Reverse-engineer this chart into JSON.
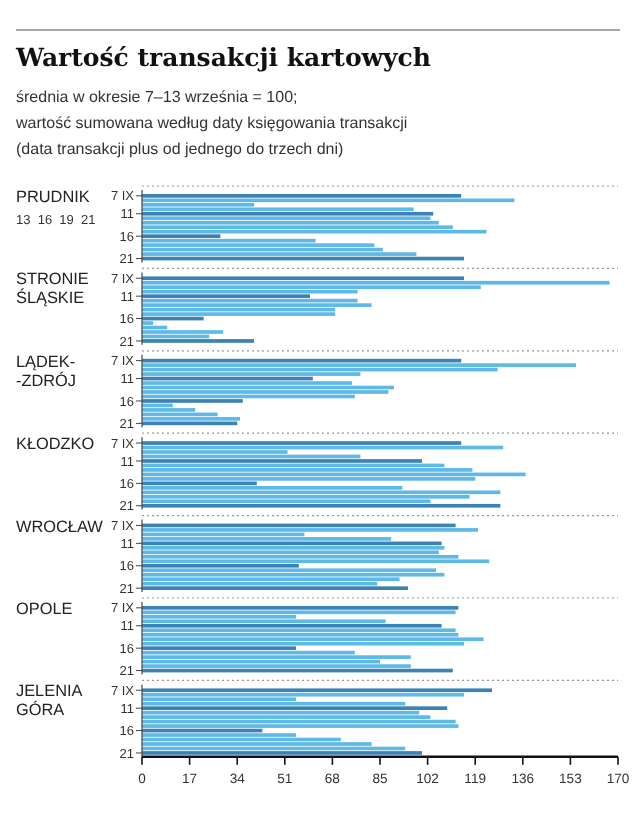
{
  "chart_data": [
    {
      "type": "bar",
      "orientation": "horizontal",
      "title": "Wartość transakcji kartowych",
      "subtitle": "średnia w okresie 7–13 września = 100;\nwartość sumowana według daty księgowania transakcji\n(data transakcji plus od jednego do trzech dni)",
      "ylabel": "PRUDNIK",
      "annotations": [
        "13  16  19  21"
      ],
      "categories": [
        "7 IX",
        null,
        null,
        null,
        "11",
        null,
        null,
        null,
        null,
        "16",
        null,
        null,
        null,
        null,
        "21"
      ],
      "values": [
        114,
        133,
        40,
        97,
        104,
        103,
        106,
        111,
        123,
        28,
        62,
        83,
        86,
        98,
        115
      ],
      "colors": [
        "#3d82b5",
        "#5fb9e6",
        "#5fb9e6",
        "#5fb9e6",
        "#3d82b5",
        "#5fb9e6",
        "#5fb9e6",
        "#5fb9e6",
        "#5fb9e6",
        "#3d82b5",
        "#5fb9e6",
        "#5fb9e6",
        "#5fb9e6",
        "#5fb9e6",
        "#3d82b5"
      ],
      "xlim": [
        0,
        170
      ],
      "tick_labels": "y"
    },
    {
      "type": "bar",
      "orientation": "horizontal",
      "ylabel": "STRONIE\nŚLĄSKIE",
      "categories": [
        "7 IX",
        null,
        null,
        null,
        "11",
        null,
        null,
        null,
        null,
        "16",
        null,
        null,
        null,
        null,
        "21"
      ],
      "values": [
        115,
        167,
        121,
        77,
        60,
        77,
        82,
        69,
        69,
        22,
        4,
        9,
        29,
        24,
        40
      ],
      "colors": [
        "#3d82b5",
        "#5fb9e6",
        "#5fb9e6",
        "#5fb9e6",
        "#3d82b5",
        "#5fb9e6",
        "#5fb9e6",
        "#5fb9e6",
        "#5fb9e6",
        "#3d82b5",
        "#5fb9e6",
        "#5fb9e6",
        "#5fb9e6",
        "#5fb9e6",
        "#3d82b5"
      ],
      "xlim": [
        0,
        170
      ],
      "tick_labels": "y"
    },
    {
      "type": "bar",
      "orientation": "horizontal",
      "ylabel": "LĄDEK-\n-ZDRÓJ",
      "categories": [
        "7 IX",
        null,
        null,
        null,
        "11",
        null,
        null,
        null,
        null,
        "16",
        null,
        null,
        null,
        null,
        "21"
      ],
      "values": [
        114,
        155,
        127,
        78,
        61,
        75,
        90,
        88,
        76,
        36,
        11,
        19,
        27,
        35,
        34
      ],
      "colors": [
        "#3d82b5",
        "#5fb9e6",
        "#5fb9e6",
        "#5fb9e6",
        "#3d82b5",
        "#5fb9e6",
        "#5fb9e6",
        "#5fb9e6",
        "#5fb9e6",
        "#3d82b5",
        "#5fb9e6",
        "#5fb9e6",
        "#5fb9e6",
        "#5fb9e6",
        "#3d82b5"
      ],
      "xlim": [
        0,
        170
      ],
      "tick_labels": "y"
    },
    {
      "type": "bar",
      "orientation": "horizontal",
      "ylabel": "KŁODZKO",
      "categories": [
        "7 IX",
        null,
        null,
        null,
        "11",
        null,
        null,
        null,
        null,
        "16",
        null,
        null,
        null,
        null,
        "21"
      ],
      "values": [
        114,
        129,
        52,
        78,
        100,
        108,
        118,
        137,
        119,
        41,
        93,
        128,
        117,
        103,
        128
      ],
      "colors": [
        "#3d82b5",
        "#5fb9e6",
        "#5fb9e6",
        "#5fb9e6",
        "#3d82b5",
        "#5fb9e6",
        "#5fb9e6",
        "#5fb9e6",
        "#5fb9e6",
        "#3d82b5",
        "#5fb9e6",
        "#5fb9e6",
        "#5fb9e6",
        "#5fb9e6",
        "#3d82b5"
      ],
      "xlim": [
        0,
        170
      ],
      "tick_labels": "y"
    },
    {
      "type": "bar",
      "orientation": "horizontal",
      "ylabel": "WROCŁAW",
      "categories": [
        "7 IX",
        null,
        null,
        null,
        "11",
        null,
        null,
        null,
        null,
        "16",
        null,
        null,
        null,
        null,
        "21"
      ],
      "values": [
        112,
        120,
        58,
        89,
        107,
        108,
        106,
        113,
        124,
        56,
        105,
        108,
        92,
        84,
        95
      ],
      "colors": [
        "#3d82b5",
        "#5fb9e6",
        "#5fb9e6",
        "#5fb9e6",
        "#3d82b5",
        "#5fb9e6",
        "#5fb9e6",
        "#5fb9e6",
        "#5fb9e6",
        "#3d82b5",
        "#5fb9e6",
        "#5fb9e6",
        "#5fb9e6",
        "#5fb9e6",
        "#3d82b5"
      ],
      "xlim": [
        0,
        170
      ],
      "tick_labels": "y"
    },
    {
      "type": "bar",
      "orientation": "horizontal",
      "ylabel": "OPOLE",
      "categories": [
        "7 IX",
        null,
        null,
        null,
        "11",
        null,
        null,
        null,
        null,
        "16",
        null,
        null,
        null,
        null,
        "21"
      ],
      "values": [
        113,
        112,
        55,
        87,
        107,
        112,
        113,
        122,
        115,
        55,
        76,
        96,
        85,
        96,
        111
      ],
      "colors": [
        "#3d82b5",
        "#5fb9e6",
        "#5fb9e6",
        "#5fb9e6",
        "#3d82b5",
        "#5fb9e6",
        "#5fb9e6",
        "#5fb9e6",
        "#5fb9e6",
        "#3d82b5",
        "#5fb9e6",
        "#5fb9e6",
        "#5fb9e6",
        "#5fb9e6",
        "#3d82b5"
      ],
      "xlim": [
        0,
        170
      ],
      "tick_labels": "y"
    },
    {
      "type": "bar",
      "orientation": "horizontal",
      "ylabel": "JELENIA\nGÓRA",
      "categories": [
        "7 IX",
        null,
        null,
        null,
        "11",
        null,
        null,
        null,
        null,
        "16",
        null,
        null,
        null,
        null,
        "21"
      ],
      "values": [
        125,
        115,
        55,
        94,
        109,
        99,
        103,
        112,
        113,
        43,
        55,
        71,
        82,
        94,
        100
      ],
      "colors": [
        "#3d82b5",
        "#5fb9e6",
        "#5fb9e6",
        "#5fb9e6",
        "#3d82b5",
        "#5fb9e6",
        "#5fb9e6",
        "#5fb9e6",
        "#5fb9e6",
        "#3d82b5",
        "#5fb9e6",
        "#5fb9e6",
        "#5fb9e6",
        "#5fb9e6",
        "#3d82b5"
      ],
      "xlim": [
        0,
        170
      ],
      "xticks": [
        0,
        17,
        34,
        51,
        68,
        85,
        102,
        119,
        136,
        153,
        170
      ]
    }
  ]
}
